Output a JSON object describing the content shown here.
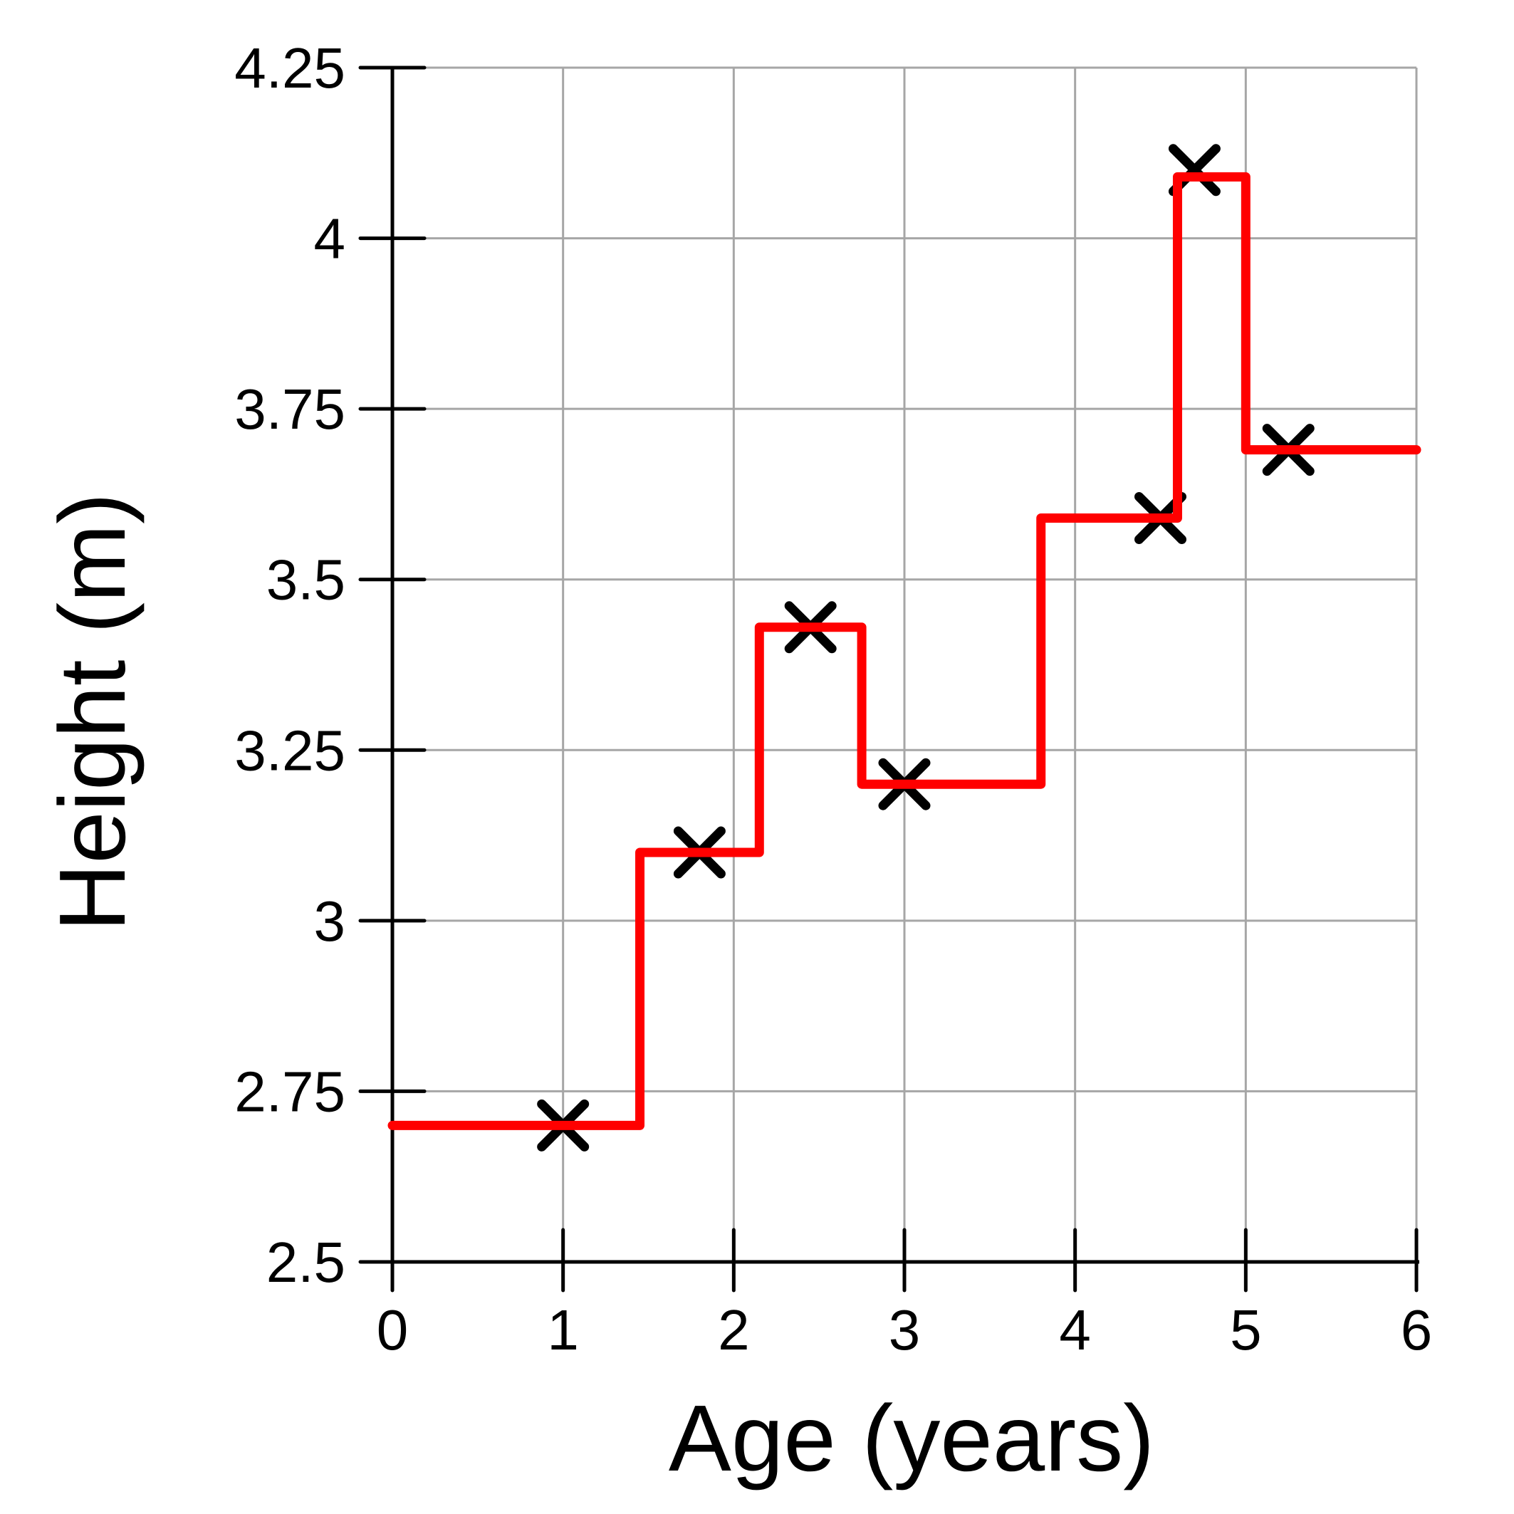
{
  "chart_data": {
    "type": "line",
    "title": "",
    "xlabel": "Age (years)",
    "ylabel": "Height (m)",
    "xlim": [
      0,
      6
    ],
    "ylim": [
      2.5,
      4.25
    ],
    "x_ticks": [
      "0",
      "1",
      "2",
      "3",
      "4",
      "5",
      "6"
    ],
    "y_ticks": [
      "2.5",
      "2.75",
      "3",
      "3.25",
      "3.5",
      "3.75",
      "4",
      "4.25"
    ],
    "grid": true,
    "series": [
      {
        "kind": "scatter",
        "marker": "x",
        "color": "#000000",
        "x": [
          1.0,
          1.8,
          2.45,
          3.0,
          4.5,
          4.7,
          5.25
        ],
        "y": [
          2.7,
          3.1,
          3.43,
          3.2,
          3.59,
          4.1,
          3.69
        ]
      },
      {
        "kind": "step",
        "color": "#ff0000",
        "x": [
          0.0,
          1.45,
          1.45,
          2.15,
          2.15,
          2.75,
          2.75,
          3.8,
          3.8,
          4.6,
          4.6,
          5.0,
          5.0,
          6.0
        ],
        "y": [
          2.7,
          2.7,
          3.1,
          3.1,
          3.43,
          3.43,
          3.2,
          3.2,
          3.59,
          3.59,
          4.09,
          4.09,
          3.69,
          3.69
        ]
      }
    ]
  }
}
